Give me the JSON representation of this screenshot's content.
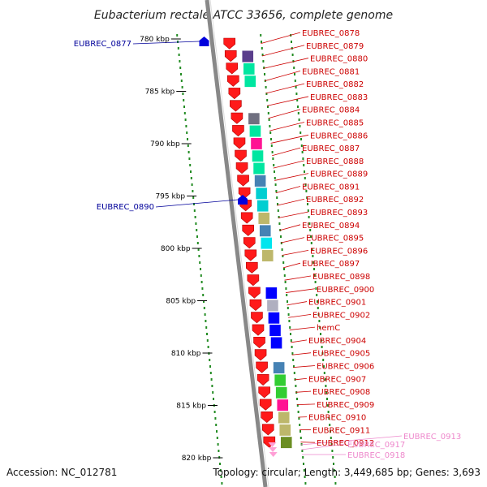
{
  "title": "Eubacterium rectale ATCC 33656, complete genome",
  "footer": {
    "accession": "Accession: NC_012781",
    "topology": "Topology: circular; Length: 3,449,685 bp; Genes: 3,693"
  },
  "colors": {
    "forward_gene": "#ff1a1a",
    "reverse_gene": "#0000dd",
    "forward_label": "#cc0000",
    "reverse_label": "#00009a",
    "rna_label": "#ee88cc",
    "tick_dots": "#228b22",
    "backbone": "#888888"
  },
  "ticks": [
    {
      "label": "780 kbp"
    },
    {
      "label": "785 kbp"
    },
    {
      "label": "790 kbp"
    },
    {
      "label": "795 kbp"
    },
    {
      "label": "800 kbp"
    },
    {
      "label": "805 kbp"
    },
    {
      "label": "810 kbp"
    },
    {
      "label": "815 kbp"
    },
    {
      "label": "820 kbp"
    }
  ],
  "reverse_genes": [
    {
      "label": "EUBREC_0877"
    },
    {
      "label": "EUBREC_0890"
    }
  ],
  "forward_genes": [
    {
      "label": "EUBREC_0878",
      "cog": "#ffffff"
    },
    {
      "label": "EUBREC_0879",
      "cog": "#5a3e8c"
    },
    {
      "label": "EUBREC_0880",
      "cog": "#00e6a0"
    },
    {
      "label": "EUBREC_0881",
      "cog": "#00e6a0"
    },
    {
      "label": "EUBREC_0882",
      "cog": "#ffffff"
    },
    {
      "label": "EUBREC_0883",
      "cog": "#ffffff"
    },
    {
      "label": "EUBREC_0884",
      "cog": "#707080"
    },
    {
      "label": "EUBREC_0885",
      "cog": "#00e6a0"
    },
    {
      "label": "EUBREC_0886",
      "cog": "#ff1493"
    },
    {
      "label": "EUBREC_0887",
      "cog": "#00e6a0"
    },
    {
      "label": "EUBREC_0888",
      "cog": "#00e6a0"
    },
    {
      "label": "EUBREC_0889",
      "cog": "#4682b4"
    },
    {
      "label": "EUBREC_0891",
      "cog": "#00ced1"
    },
    {
      "label": "EUBREC_0892",
      "cog": "#00ced1"
    },
    {
      "label": "EUBREC_0893",
      "cog": "#bdb76b"
    },
    {
      "label": "EUBREC_0894",
      "cog": "#4682b4"
    },
    {
      "label": "EUBREC_0895",
      "cog": "#00e5ee"
    },
    {
      "label": "EUBREC_0896",
      "cog": "#bdb76b"
    },
    {
      "label": "EUBREC_0897",
      "cog": "#ffffff"
    },
    {
      "label": "EUBREC_0898",
      "cog": "#ffffff"
    },
    {
      "label": "EUBREC_0900",
      "cog": "#0000ff"
    },
    {
      "label": "EUBREC_0901",
      "cog": "#b0b0c0"
    },
    {
      "label": "EUBREC_0902",
      "cog": "#0000ff"
    },
    {
      "label": "hemC",
      "cog": "#0000ff"
    },
    {
      "label": "EUBREC_0904",
      "cog": "#0000ff"
    },
    {
      "label": "EUBREC_0905",
      "cog": "#ffffff"
    },
    {
      "label": "EUBREC_0906",
      "cog": "#4682b4"
    },
    {
      "label": "EUBREC_0907",
      "cog": "#32cd32"
    },
    {
      "label": "EUBREC_0908",
      "cog": "#32cd32"
    },
    {
      "label": "EUBREC_0909",
      "cog": "#ff1493"
    },
    {
      "label": "EUBREC_0910",
      "cog": "#bdb76b"
    },
    {
      "label": "EUBREC_0911",
      "cog": "#bdb76b"
    },
    {
      "label": "EUBREC_0912",
      "cog": "#6b8e23"
    }
  ],
  "rna_genes": [
    {
      "label": "EUBREC_0913"
    },
    {
      "label": "EUBREC_0917"
    },
    {
      "label": "EUBREC_0918"
    }
  ]
}
